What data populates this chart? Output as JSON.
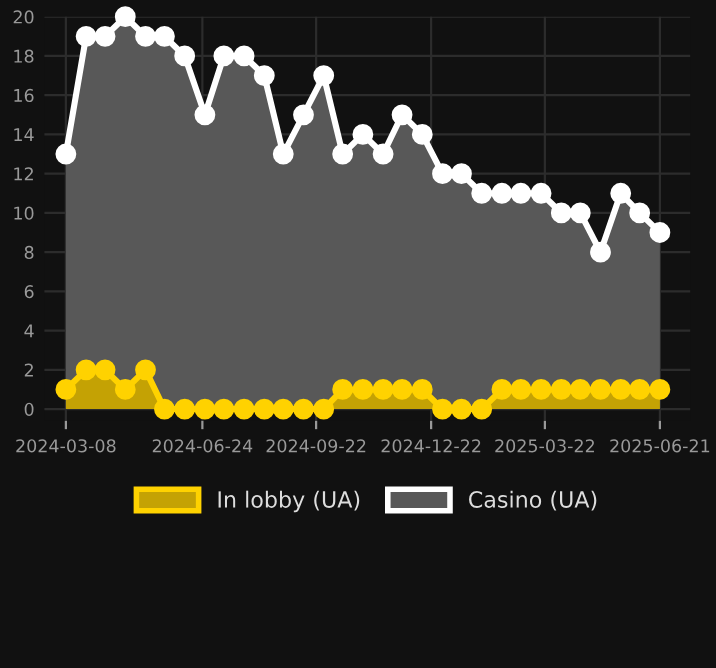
{
  "chart_data": {
    "type": "area",
    "x": [
      "2024-03-08",
      "2024-03-24",
      "2024-04-08",
      "2024-04-24",
      "2024-05-10",
      "2024-05-25",
      "2024-06-10",
      "2024-06-26",
      "2024-07-11",
      "2024-07-27",
      "2024-08-12",
      "2024-08-27",
      "2024-09-12",
      "2024-09-28",
      "2024-10-13",
      "2024-10-29",
      "2024-11-14",
      "2024-11-29",
      "2024-12-15",
      "2024-12-31",
      "2025-01-15",
      "2025-01-31",
      "2025-02-16",
      "2025-03-03",
      "2025-03-19",
      "2025-04-04",
      "2025-04-19",
      "2025-05-05",
      "2025-05-21",
      "2025-06-05",
      "2025-06-21"
    ],
    "series": [
      {
        "name": "Casino (UA)",
        "color": "#ffffff",
        "values": [
          13,
          19,
          19,
          20,
          19,
          19,
          18,
          15,
          18,
          18,
          17,
          13,
          15,
          17,
          13,
          14,
          13,
          15,
          14,
          12,
          12,
          11,
          11,
          11,
          11,
          10,
          10,
          8,
          11,
          10,
          9
        ]
      },
      {
        "name": "In lobby (UA)",
        "color": "#ffd200",
        "values": [
          1,
          2,
          2,
          1,
          2,
          0,
          0,
          0,
          0,
          0,
          0,
          0,
          0,
          0,
          1,
          1,
          1,
          1,
          1,
          0,
          0,
          0,
          1,
          1,
          1,
          1,
          1,
          1,
          1,
          1,
          1
        ]
      }
    ],
    "xlim": [
      "2024-02-20",
      "2025-07-15"
    ],
    "xticks": [
      "2024-03-08",
      "2024-06-24",
      "2024-09-22",
      "2024-12-22",
      "2025-03-22",
      "2025-06-21"
    ],
    "ylim": [
      -0.6,
      20
    ],
    "yticks": [
      0,
      2,
      4,
      6,
      8,
      10,
      12,
      14,
      16,
      18,
      20
    ],
    "grid": true,
    "legend": "bottom",
    "marker": "circle",
    "line_style": "solid"
  }
}
